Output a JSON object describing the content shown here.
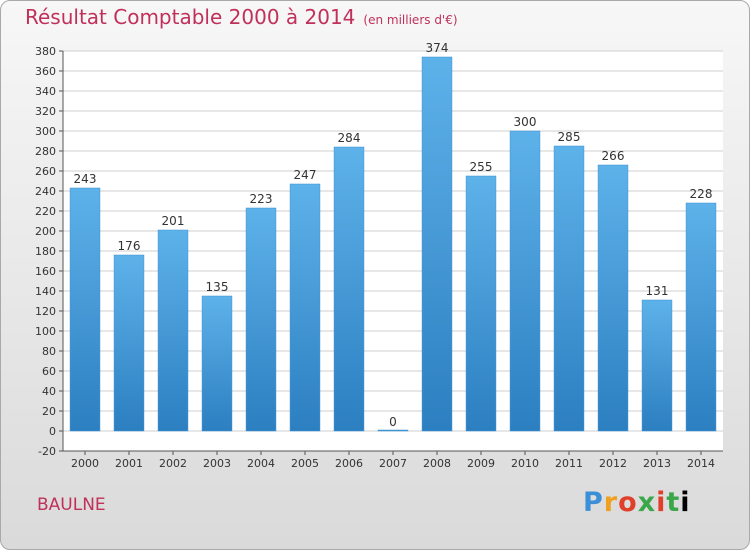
{
  "title": "Résultat Comptable 2000 à 2014",
  "subtitle": "(en milliers d'€)",
  "commune": "BAULNE",
  "logo": [
    "P",
    "r",
    "o",
    "x",
    "i",
    "t",
    "i"
  ],
  "colors": {
    "title": "#c0305a",
    "bar_top": "#5eb2ea",
    "bar_bottom": "#2c7fc0",
    "axis_text": "#333333"
  },
  "chart_data": {
    "type": "bar",
    "categories": [
      "2000",
      "2001",
      "2002",
      "2003",
      "2004",
      "2005",
      "2006",
      "2007",
      "2008",
      "2009",
      "2010",
      "2011",
      "2012",
      "2013",
      "2014"
    ],
    "values": [
      243,
      176,
      201,
      135,
      223,
      247,
      284,
      0,
      374,
      255,
      300,
      285,
      266,
      131,
      228
    ],
    "data_labels": [
      "243",
      "176",
      "201",
      "135",
      "223",
      "247",
      "284",
      "0",
      "374",
      "255",
      "300",
      "285",
      "266",
      "131",
      "228"
    ],
    "ylim": [
      -20,
      380
    ],
    "yticks": [
      -20,
      0,
      20,
      40,
      60,
      80,
      100,
      120,
      140,
      160,
      180,
      200,
      220,
      240,
      260,
      280,
      300,
      320,
      340,
      360,
      380
    ],
    "grid": true,
    "legend": "none"
  }
}
